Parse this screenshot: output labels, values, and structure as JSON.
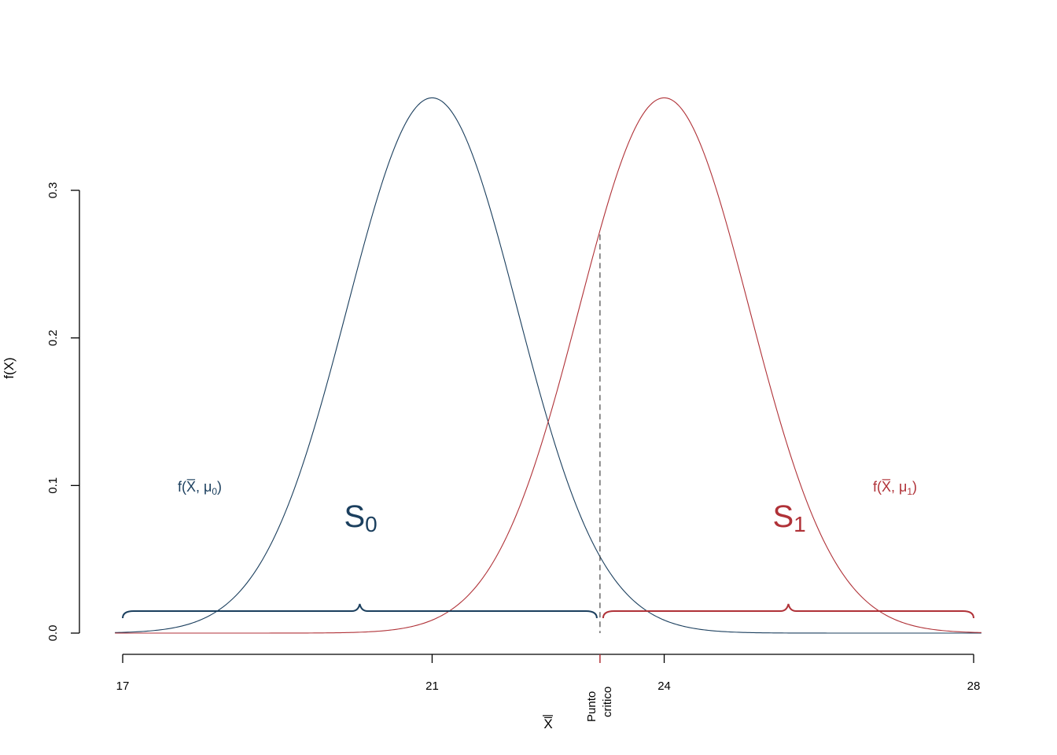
{
  "chart_data": {
    "type": "line",
    "xlabel": "X̅",
    "ylabel": "f(X)",
    "xlim": [
      17,
      28
    ],
    "ylim": [
      0,
      0.36
    ],
    "x_ticks": [
      17,
      21,
      24,
      28
    ],
    "y_ticks": [
      0.0,
      0.1,
      0.2,
      0.3
    ],
    "y_tick_labels": [
      "0.0",
      "0.1",
      "0.2",
      "0.3"
    ],
    "series": [
      {
        "mean": 21,
        "sd": 1.1,
        "color": "#1b3f5e"
      },
      {
        "mean": 24,
        "sd": 1.1,
        "color": "#b03238"
      }
    ],
    "critical_point": {
      "x": 23.17,
      "label_line1": "Punto",
      "label_line2": "critico",
      "line_top_y": 0.27
    },
    "regions": [
      {
        "label_main": "S",
        "label_sub": "0",
        "x_from": 17,
        "x_to": 23.17,
        "color": "#1b3f5e"
      },
      {
        "label_main": "S",
        "label_sub": "1",
        "x_from": 23.17,
        "x_to": 28,
        "color": "#b03238"
      }
    ],
    "annotations": [
      {
        "text_pre": "f(",
        "text_x": "X̅",
        "text_mid": ", μ",
        "text_sub": "0",
        "text_post": ")",
        "color": "#1b3f5e"
      },
      {
        "text_pre": "f(",
        "text_x": "X̅",
        "text_mid": ", μ",
        "text_sub": "1",
        "text_post": ")",
        "color": "#b03238"
      }
    ]
  }
}
